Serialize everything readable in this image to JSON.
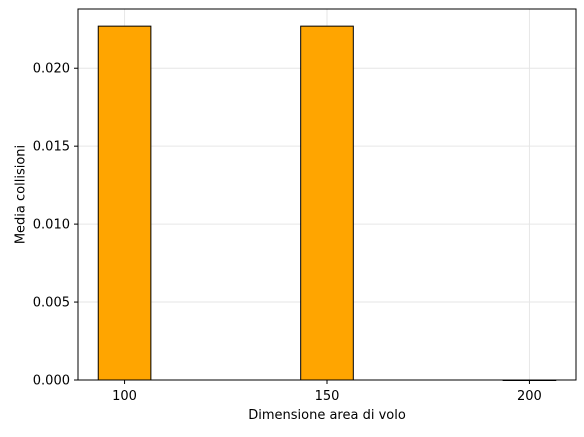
{
  "chart_data": {
    "type": "bar",
    "title": "",
    "xlabel": "Dimensione area di volo",
    "ylabel": "Media collisioni",
    "categories": [
      100,
      150,
      200
    ],
    "values": [
      0.0227,
      0.0227,
      0.0
    ],
    "bar_width": 13,
    "xlim": [
      88.5,
      211.5
    ],
    "ylim": [
      0,
      0.0238
    ],
    "xticks": [
      100,
      150,
      200
    ],
    "xtick_labels": [
      "100",
      "150",
      "200"
    ],
    "yticks": [
      0.0,
      0.005,
      0.01,
      0.015,
      0.02
    ],
    "ytick_labels": [
      "0.000",
      "0.005",
      "0.010",
      "0.015",
      "0.020"
    ],
    "grid": true,
    "legend": "none",
    "colors": {
      "bar_fill": "#ffa500",
      "bar_edge": "#000000",
      "grid": "#e6e6e6",
      "axes": "#000000"
    }
  }
}
